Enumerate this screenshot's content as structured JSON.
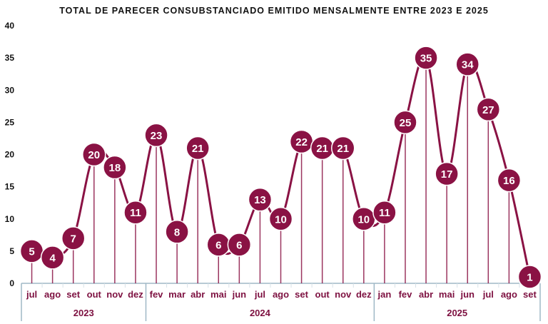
{
  "chart_data": {
    "type": "line",
    "title": "TOTAL DE PARECER CONSUBSTANCIADO EMITIDO MENSALMENTE ENTRE 2023 E 2025",
    "xlabel": "",
    "ylabel": "",
    "ylim": [
      0,
      40
    ],
    "yticks": [
      0,
      5,
      10,
      15,
      20,
      25,
      30,
      35,
      40
    ],
    "grid": false,
    "legend": "none",
    "smooth": true,
    "data_labels": true,
    "color": "#8a1244",
    "groups": [
      {
        "label": "2023",
        "categories": [
          "jul",
          "ago",
          "set",
          "out",
          "nov",
          "dez"
        ]
      },
      {
        "label": "2024",
        "categories": [
          "fev",
          "mar",
          "abr",
          "mai",
          "jun",
          "jul",
          "ago",
          "set",
          "out",
          "nov",
          "dez"
        ]
      },
      {
        "label": "2025",
        "categories": [
          "jan",
          "fev",
          "abr",
          "mai",
          "jun",
          "jul",
          "ago",
          "set"
        ]
      }
    ],
    "values": [
      5,
      4,
      7,
      20,
      18,
      11,
      23,
      8,
      21,
      6,
      6,
      13,
      10,
      22,
      21,
      21,
      10,
      11,
      25,
      35,
      17,
      34,
      27,
      16,
      1
    ]
  }
}
